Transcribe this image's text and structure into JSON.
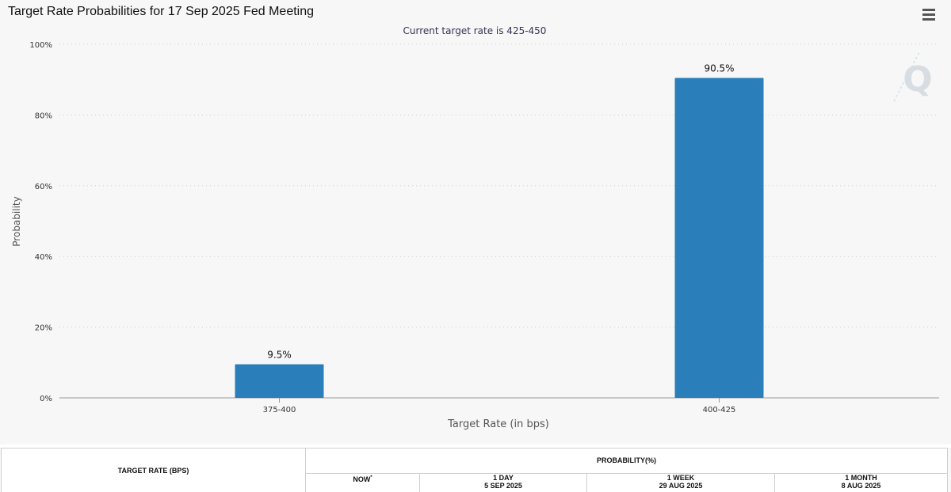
{
  "header": {
    "title": "Target Rate Probabilities for 17 Sep 2025 Fed Meeting",
    "subtitle": "Current target rate is 425-450"
  },
  "chart_data": {
    "type": "bar",
    "title": "Target Rate Probabilities for 17 Sep 2025 Fed Meeting",
    "subtitle": "Current target rate is 425-450",
    "xlabel": "Target Rate (in bps)",
    "ylabel": "Probability",
    "categories": [
      "375-400",
      "400-425"
    ],
    "values": [
      9.5,
      90.5
    ],
    "data_labels": [
      "9.5%",
      "90.5%"
    ],
    "ylim": [
      0,
      100
    ],
    "yticks": [
      0,
      20,
      40,
      60,
      80,
      100
    ],
    "ytick_labels": [
      "0%",
      "20%",
      "40%",
      "60%",
      "80%",
      "100%"
    ],
    "grid": true,
    "bar_color": "#2a7fba"
  },
  "table": {
    "target_header": "TARGET RATE (BPS)",
    "prob_header": "PROBABILITY(%)",
    "columns": [
      {
        "label": "NOW",
        "sup": "*",
        "date": ""
      },
      {
        "label": "1 DAY",
        "sup": "",
        "date": "5 SEP 2025"
      },
      {
        "label": "1 WEEK",
        "sup": "",
        "date": "29 AUG 2025"
      },
      {
        "label": "1 MONTH",
        "sup": "",
        "date": "8 AUG 2025"
      }
    ]
  }
}
